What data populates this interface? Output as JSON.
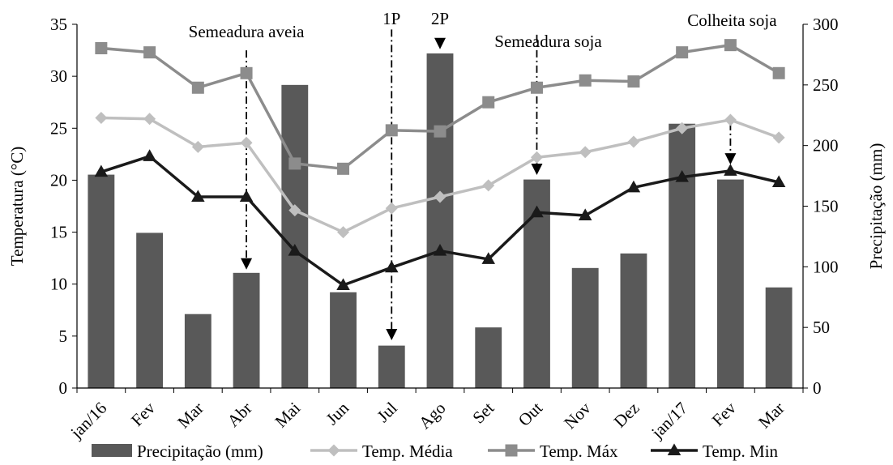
{
  "chart_data": {
    "type": "bar-line-combo",
    "categories": [
      "jan/16",
      "Fev",
      "Mar",
      "Abr",
      "Mai",
      "Jun",
      "Jul",
      "Ago",
      "Set",
      "Out",
      "Nov",
      "Dez",
      "jan/17",
      "Fev",
      "Mar"
    ],
    "y_left": {
      "label": "Temperatura (°C)",
      "min": 0,
      "max": 35,
      "step": 5,
      "ticks": [
        "0",
        "5",
        "10",
        "15",
        "20",
        "25",
        "30",
        "35"
      ]
    },
    "y_right": {
      "label": "Precipitação (mm)",
      "min": 0,
      "max": 300,
      "step": 50,
      "ticks": [
        "0",
        "50",
        "100",
        "150",
        "200",
        "250",
        "300"
      ]
    },
    "grid": false,
    "legend_position": "bottom",
    "bar_series": {
      "name": "Precipitação (mm)",
      "axis": "right",
      "color": "#595959",
      "values": [
        176,
        128,
        61,
        95,
        250,
        79,
        35,
        276,
        50,
        172,
        99,
        111,
        218,
        172,
        83
      ]
    },
    "line_series": [
      {
        "name": "Temp. Média",
        "axis": "left",
        "color": "#bfbfbf",
        "marker": "diamond",
        "values": [
          26.0,
          25.9,
          23.2,
          23.6,
          17.1,
          15.0,
          17.3,
          18.4,
          19.5,
          22.2,
          22.7,
          23.7,
          25.0,
          25.8,
          24.1
        ]
      },
      {
        "name": "Temp. Máx",
        "axis": "left",
        "color": "#8c8c8c",
        "marker": "square",
        "values": [
          32.7,
          32.3,
          28.9,
          30.3,
          21.6,
          21.1,
          24.8,
          24.7,
          27.5,
          28.9,
          29.6,
          29.5,
          32.3,
          33.0,
          30.3
        ]
      },
      {
        "name": "Temp. Min",
        "axis": "left",
        "color": "#1a1a1a",
        "marker": "triangle",
        "values": [
          20.8,
          22.3,
          18.4,
          18.4,
          13.2,
          9.9,
          11.6,
          13.2,
          12.4,
          16.9,
          16.6,
          19.3,
          20.3,
          20.9,
          19.8
        ]
      }
    ],
    "annotations": [
      {
        "text": "Semeadura aveia",
        "category_index": 3,
        "line": "dash-dot",
        "from_temp": 32.5,
        "to_temp": 11.4
      },
      {
        "text": "1P",
        "category_index": 6,
        "line": "dash-dot",
        "from_temp": 34.5,
        "to_temp": 4.6
      },
      {
        "text": "2P",
        "category_index": 7,
        "line": "arrow-only",
        "from_temp": 34.6,
        "to_temp": 32.6
      },
      {
        "text": "Semeadura soja",
        "category_index": 9,
        "line": "dash-dot",
        "from_temp": 34.0,
        "to_temp": 20.5
      },
      {
        "text": "Colheita soja",
        "category_index": 13,
        "line": "dash-dot",
        "from_temp": 25.5,
        "to_temp": 21.5
      }
    ]
  }
}
